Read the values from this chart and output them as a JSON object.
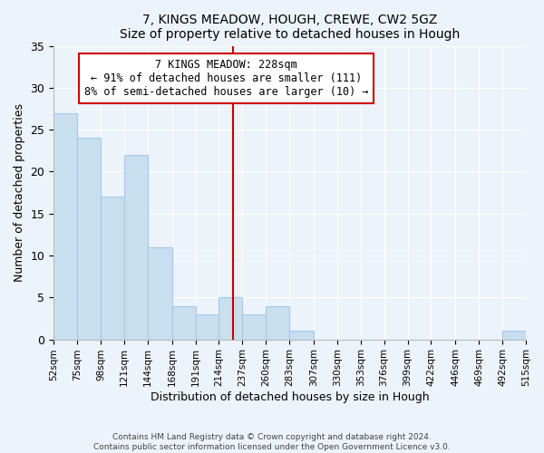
{
  "title": "7, KINGS MEADOW, HOUGH, CREWE, CW2 5GZ",
  "subtitle": "Size of property relative to detached houses in Hough",
  "xlabel": "Distribution of detached houses by size in Hough",
  "ylabel": "Number of detached properties",
  "bar_color": "#c8dff0",
  "bar_edge_color": "#a8c8e8",
  "bins": [
    52,
    75,
    98,
    121,
    144,
    168,
    191,
    214,
    237,
    260,
    283,
    307,
    330,
    353,
    376,
    399,
    422,
    446,
    469,
    492,
    515
  ],
  "counts": [
    27,
    24,
    17,
    22,
    11,
    4,
    3,
    5,
    3,
    4,
    1,
    0,
    0,
    0,
    0,
    0,
    0,
    0,
    0,
    1
  ],
  "tick_labels": [
    "52sqm",
    "75sqm",
    "98sqm",
    "121sqm",
    "144sqm",
    "168sqm",
    "191sqm",
    "214sqm",
    "237sqm",
    "260sqm",
    "283sqm",
    "307sqm",
    "330sqm",
    "353sqm",
    "376sqm",
    "399sqm",
    "422sqm",
    "446sqm",
    "469sqm",
    "492sqm",
    "515sqm"
  ],
  "ylim": [
    0,
    35
  ],
  "yticks": [
    0,
    5,
    10,
    15,
    20,
    25,
    30,
    35
  ],
  "property_line_x": 228,
  "property_line_color": "#cc0000",
  "annotation_title": "7 KINGS MEADOW: 228sqm",
  "annotation_line1": "← 91% of detached houses are smaller (111)",
  "annotation_line2": "8% of semi-detached houses are larger (10) →",
  "annotation_box_color": "#ffffff",
  "annotation_box_edge": "#cc0000",
  "footer1": "Contains HM Land Registry data © Crown copyright and database right 2024.",
  "footer2": "Contains public sector information licensed under the Open Government Licence v3.0.",
  "background_color": "#edf3fa",
  "plot_background": "#edf3fa",
  "grid_color": "#ffffff"
}
